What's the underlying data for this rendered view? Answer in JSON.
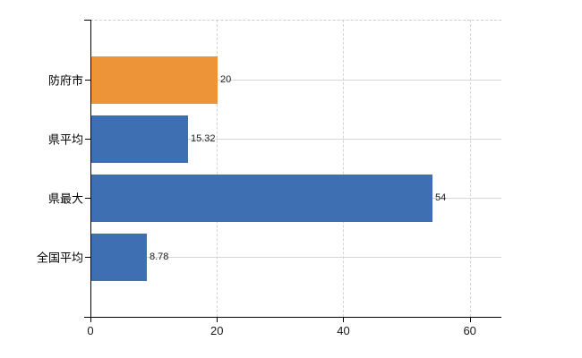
{
  "chart_data": {
    "type": "bar",
    "orientation": "horizontal",
    "title": "",
    "xlabel": "",
    "ylabel": "",
    "categories": [
      "防府市",
      "県平均",
      "県最大",
      "全国平均"
    ],
    "values": [
      20,
      15.32,
      54,
      8.78
    ],
    "value_labels": [
      "20",
      "15.32",
      "54",
      "8.78"
    ],
    "bar_colors": [
      "#ED9338",
      "#3E6FB2",
      "#3E6FB2",
      "#3E6FB2"
    ],
    "x_ticks": [
      0,
      20,
      40,
      60
    ],
    "x_tick_labels": [
      "0",
      "20",
      "40",
      "60"
    ],
    "xlim": [
      0,
      65
    ],
    "legend": "none",
    "grid": {
      "vertical_lines": "dashed",
      "horizontal_lines": "solid",
      "top_border": "dashed"
    },
    "colors": {
      "accent_orange": "#ED9338",
      "series_blue": "#3E6FB2",
      "gridline": "#D4D9D1",
      "axis": "#000000",
      "background": "#FFFFFF"
    }
  }
}
